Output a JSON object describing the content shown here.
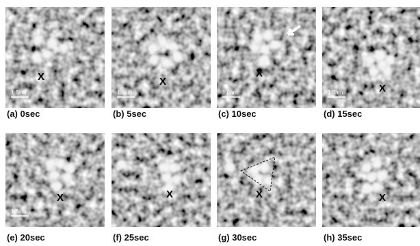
{
  "panels": [
    {
      "caption": "(a) 0sec",
      "marker": "X",
      "scale": "1.6nm"
    },
    {
      "caption": "(b) 5sec",
      "marker": "X",
      "scale": "1.6nm"
    },
    {
      "caption": "(c) 10sec",
      "marker": "X",
      "scale": "1.6nm"
    },
    {
      "caption": "(d) 15sec",
      "marker": "X",
      "scale": "1.6nm"
    },
    {
      "caption": "(e) 20sec",
      "marker": "X",
      "scale": "1.6nm"
    },
    {
      "caption": "(f) 25sec",
      "marker": "X"
    },
    {
      "caption": "(g) 30sec",
      "marker": "X"
    },
    {
      "caption": "(h) 35sec",
      "marker": "X"
    }
  ]
}
